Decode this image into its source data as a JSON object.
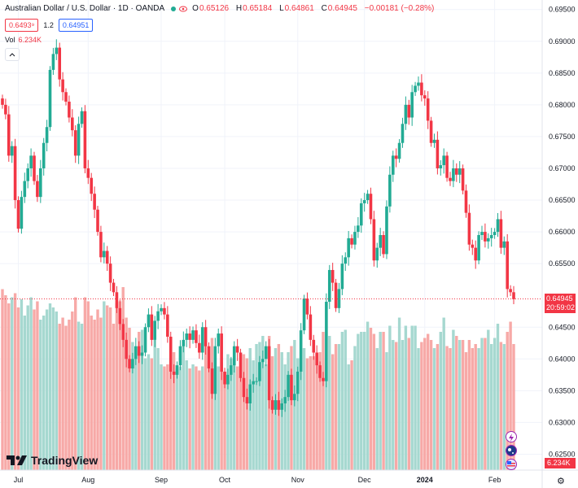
{
  "header": {
    "symbol": "Australian Dollar / U.S. Dollar · 1D · OANDA",
    "open_label": "O",
    "open": "0.65126",
    "high_label": "H",
    "high": "0.65184",
    "low_label": "L",
    "low": "0.64861",
    "close_label": "C",
    "close": "0.64945",
    "change": "−0.00181 (−0.28%)"
  },
  "quote": {
    "bid": "0.6493⁹",
    "spread": "1.2",
    "ask": "0.64951"
  },
  "volume_legend": {
    "label": "Vol",
    "value": "6.234K"
  },
  "price_tag": {
    "price": "0.64945",
    "countdown": "20:59:02"
  },
  "volume_tag": "6.234K",
  "logo_text": "TradingView",
  "colors": {
    "up": "#22ab94",
    "down": "#f23645",
    "vol_up": "#a6d8d0",
    "vol_down": "#f7a9a7",
    "grid": "#f0f3fa"
  },
  "chart_data": {
    "type": "candlestick",
    "title": "Australian Dollar / U.S. Dollar · 1D · OANDA",
    "ylim": [
      0.6225,
      0.6965
    ],
    "y_ticks": [
      "0.69500",
      "0.69000",
      "0.68500",
      "0.68000",
      "0.67500",
      "0.67000",
      "0.66500",
      "0.66000",
      "0.65500",
      "0.64500",
      "0.64000",
      "0.63500",
      "0.63000",
      "0.62500"
    ],
    "x_ticks": [
      {
        "label": "Jul",
        "index": 5
      },
      {
        "label": "Aug",
        "index": 27
      },
      {
        "label": "Sep",
        "index": 50
      },
      {
        "label": "Oct",
        "index": 70
      },
      {
        "label": "Nov",
        "index": 93
      },
      {
        "label": "Dec",
        "index": 114
      },
      {
        "label": "2024",
        "index": 133
      },
      {
        "label": "Feb",
        "index": 155
      }
    ],
    "closes": [
      0.68,
      0.6785,
      0.672,
      0.6735,
      0.665,
      0.6605,
      0.6655,
      0.668,
      0.67,
      0.672,
      0.668,
      0.6655,
      0.67,
      0.674,
      0.6765,
      0.6855,
      0.688,
      0.689,
      0.684,
      0.682,
      0.6805,
      0.678,
      0.676,
      0.672,
      0.677,
      0.679,
      0.67,
      0.6685,
      0.666,
      0.6635,
      0.66,
      0.656,
      0.657,
      0.655,
      0.652,
      0.6505,
      0.648,
      0.6455,
      0.643,
      0.64,
      0.6385,
      0.64,
      0.642,
      0.6405,
      0.641,
      0.645,
      0.647,
      0.643,
      0.646,
      0.6475,
      0.648,
      0.647,
      0.6435,
      0.638,
      0.6375,
      0.639,
      0.642,
      0.643,
      0.644,
      0.643,
      0.6445,
      0.6425,
      0.641,
      0.645,
      0.642,
      0.6385,
      0.6345,
      0.642,
      0.644,
      0.638,
      0.636,
      0.6375,
      0.639,
      0.642,
      0.641,
      0.637,
      0.634,
      0.633,
      0.636,
      0.6365,
      0.6365,
      0.6395,
      0.64,
      0.642,
      0.6335,
      0.632,
      0.6335,
      0.632,
      0.633,
      0.634,
      0.6375,
      0.6335,
      0.6345,
      0.638,
      0.6445,
      0.6495,
      0.647,
      0.643,
      0.641,
      0.639,
      0.637,
      0.6365,
      0.649,
      0.654,
      0.652,
      0.648,
      0.651,
      0.655,
      0.656,
      0.659,
      0.658,
      0.66,
      0.661,
      0.6645,
      0.665,
      0.666,
      0.662,
      0.6555,
      0.6575,
      0.6595,
      0.6565,
      0.664,
      0.669,
      0.672,
      0.6715,
      0.674,
      0.677,
      0.68,
      0.678,
      0.682,
      0.683,
      0.6835,
      0.6815,
      0.681,
      0.6775,
      0.674,
      0.6745,
      0.67,
      0.6705,
      0.672,
      0.6685,
      0.668,
      0.67,
      0.669,
      0.67,
      0.6665,
      0.663,
      0.658,
      0.6575,
      0.6555,
      0.6595,
      0.66,
      0.6585,
      0.659,
      0.6595,
      0.66,
      0.662,
      0.6575,
      0.6585,
      0.651,
      0.6505,
      0.6494
    ],
    "volume_ylim": [
      0,
      12
    ],
    "volume_values": [
      8.9,
      8.6,
      8.2,
      8.5,
      8.7,
      8.0,
      8.4,
      7.6,
      8.1,
      8.5,
      7.9,
      8.3,
      7.4,
      7.6,
      7.9,
      8.2,
      8.0,
      7.8,
      7.2,
      7.5,
      7.1,
      7.4,
      7.8,
      8.5,
      7.3,
      7.2,
      8.5,
      8.3,
      7.6,
      7.4,
      7.9,
      7.5,
      8.3,
      8.1,
      8.0,
      7.2,
      8.2,
      8.3,
      9.0,
      7.5,
      7.0,
      6.3,
      6.0,
      6.8,
      6.9,
      5.5,
      5.7,
      5.5,
      6.4,
      6.0,
      5.2,
      5.1,
      5.2,
      5.6,
      5.8,
      5.0,
      5.1,
      6.4,
      5.4,
      5.0,
      5.2,
      5.1,
      4.9,
      5.1,
      6.3,
      5.4,
      6.5,
      5.0,
      5.1,
      5.3,
      4.8,
      5.7,
      5.5,
      6.0,
      5.1,
      4.6,
      5.7,
      5.5,
      6.0,
      5.4,
      6.2,
      6.3,
      6.6,
      5.2,
      6.6,
      5.6,
      6.0,
      6.2,
      5.8,
      5.2,
      5.8,
      6.1,
      6.4,
      5.5,
      5.8,
      6.0,
      5.5,
      5.6,
      5.6,
      5.7,
      5.8,
      6.8,
      5.1,
      6.6,
      5.7,
      6.2,
      6.2,
      6.8,
      6.9,
      5.2,
      5.4,
      6.1,
      6.7,
      6.8,
      6.8,
      7.3,
      7.0,
      6.7,
      6.0,
      6.8,
      6.8,
      5.8,
      7.1,
      6.4,
      6.3,
      7.5,
      6.4,
      7.1,
      6.5,
      7.1,
      7.1,
      6.0,
      6.3,
      6.5,
      6.7,
      6.4,
      6.0,
      6.2,
      6.8,
      7.5,
      6.1,
      6.0,
      6.9,
      6.6,
      6.4,
      6.4,
      5.8,
      6.4,
      6.0,
      6.2,
      6.0,
      6.5,
      6.5,
      6.9,
      6.2,
      6.5,
      7.2,
      6.3,
      6.2,
      6.8,
      7.3,
      6.2
    ],
    "last_price": 0.64945
  }
}
